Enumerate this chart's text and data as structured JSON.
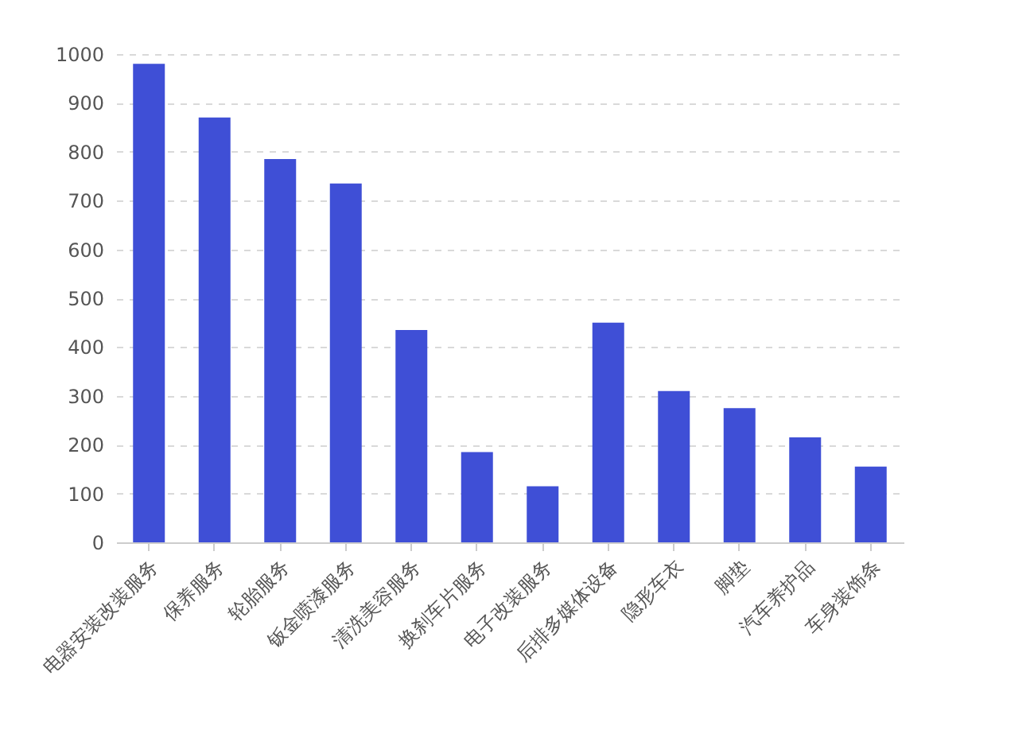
{
  "chart_data": {
    "type": "bar",
    "categories": [
      "电器安装改装服务",
      "保养服务",
      "轮胎服务",
      "钣金喷漆服务",
      "清洗美容服务",
      "换刹车片服务",
      "电子改装服务",
      "后排多媒体设备",
      "隐形车衣",
      "脚垫",
      "汽车养护品",
      "车身装饰条"
    ],
    "values": [
      980,
      870,
      785,
      735,
      435,
      185,
      115,
      450,
      310,
      275,
      215,
      155
    ],
    "color": "#3f4fd6",
    "ylim": [
      0,
      1000
    ],
    "yticks": [
      0,
      100,
      200,
      300,
      400,
      500,
      600,
      700,
      800,
      900,
      1000
    ],
    "grid": "y"
  }
}
